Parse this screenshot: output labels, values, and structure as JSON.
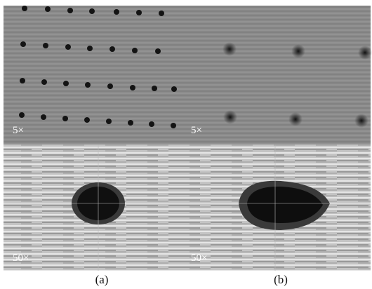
{
  "panels": [
    {
      "caption": "(a)",
      "images": [
        {
          "magnification": "5×"
        },
        {
          "magnification": "50×"
        }
      ]
    },
    {
      "caption": "(b)",
      "images": [
        {
          "magnification": "5×"
        },
        {
          "magnification": "50×"
        }
      ]
    }
  ]
}
